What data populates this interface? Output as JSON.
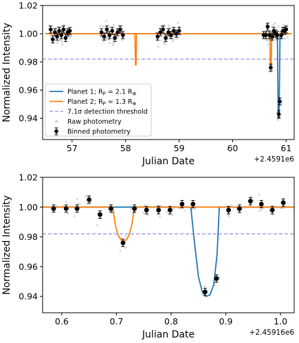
{
  "chart_data": [
    {
      "type": "scatter",
      "xlabel": "Julian Date",
      "ylabel": "Normalized Intensity",
      "x_offset_label": "+2.4591e6",
      "xlim": [
        56.45,
        61.15
      ],
      "ylim": [
        0.925,
        1.02
      ],
      "xticks": [
        57,
        58,
        59,
        60,
        61
      ],
      "xtick_labels": [
        "57",
        "58",
        "59",
        "60",
        "61"
      ],
      "yticks": [
        0.94,
        0.96,
        0.98,
        1.0,
        1.02
      ],
      "ytick_labels": [
        "0.94",
        "0.96",
        "0.98",
        "1.00",
        "1.02"
      ],
      "legend_position": "lower-left",
      "legend": [
        {
          "key": "planet1",
          "label": "Planet 1; R",
          "sub": "P",
          "suffix": " = 2.1 R",
          "end_sub": "⊕",
          "style": "line",
          "color": "#1f77b4"
        },
        {
          "key": "planet2",
          "label": "Planet 2; R",
          "sub": "P",
          "suffix": " = 1.3 R",
          "end_sub": "⊕",
          "style": "line",
          "color": "#ff7f0e"
        },
        {
          "key": "threshold",
          "label": "7.1σ detection threshold",
          "style": "dashed",
          "color": "#8c8cf0"
        },
        {
          "key": "raw",
          "label": "Raw photometry",
          "style": "dot",
          "color": "#cccccc"
        },
        {
          "key": "binned",
          "label": "Binned photometry",
          "style": "errorbar",
          "color": "#000000"
        }
      ],
      "threshold": 0.982,
      "series": [
        {
          "name": "Planet 1; RP = 2.1 R⊕",
          "type": "line",
          "color": "#1f77b4",
          "x": [
            56.5,
            60.835,
            60.852,
            60.868,
            60.886,
            61.1
          ],
          "y": [
            1.0,
            1.0,
            0.94,
            0.94,
            1.0,
            1.0
          ]
        },
        {
          "name": "Planet 2; RP = 1.3 R⊕",
          "type": "line",
          "color": "#ff7f0e",
          "x": [
            56.5,
            58.175,
            58.185,
            58.195,
            58.205,
            60.695,
            60.705,
            60.72,
            60.73,
            61.1
          ],
          "y": [
            1.0,
            1.0,
            0.978,
            0.978,
            1.0,
            1.0,
            0.977,
            0.977,
            1.0,
            1.0
          ]
        },
        {
          "name": "Binned photometry",
          "type": "errorbar",
          "color": "#000000",
          "yerr": 0.0025,
          "x": [
            56.6,
            56.64,
            56.68,
            56.72,
            56.76,
            56.8,
            56.84,
            56.88,
            56.92,
            56.96,
            57.55,
            57.6,
            57.65,
            57.7,
            57.75,
            57.8,
            57.85,
            57.9,
            57.95,
            58.6,
            58.65,
            58.7,
            58.75,
            58.8,
            58.85,
            58.9,
            58.95,
            59.0,
            60.58,
            60.62,
            60.655,
            60.69,
            60.712,
            60.74,
            60.77,
            60.8,
            60.835,
            60.862,
            60.88,
            60.91,
            60.94,
            60.97,
            61.0
          ],
          "y": [
            1.003,
            0.996,
            1.001,
            0.998,
            1.002,
            0.999,
            1.003,
            0.997,
            1.001,
            1.002,
            1.001,
            0.998,
            1.003,
            0.999,
            1.002,
            0.997,
            1.001,
            1.003,
            0.999,
            0.998,
            1.001,
            1.003,
            0.997,
            1.001,
            0.999,
            1.002,
            1.0,
            1.002,
            0.999,
            0.999,
            1.005,
            0.999,
            0.976,
            0.998,
            1.002,
            1.0,
            0.999,
            0.943,
            0.952,
            0.999,
            1.002,
            1.002,
            1.003
          ]
        }
      ]
    },
    {
      "type": "scatter",
      "xlabel": "Julian Date",
      "ylabel": "Normalized Intensity",
      "x_offset_label": "+2.45916e6",
      "xlim": [
        0.565,
        1.025
      ],
      "ylim": [
        0.929,
        1.02
      ],
      "xticks": [
        0.6,
        0.7,
        0.8,
        0.9,
        1.0
      ],
      "xtick_labels": [
        "0.6",
        "0.7",
        "0.8",
        "0.9",
        "1.0"
      ],
      "yticks": [
        0.94,
        0.96,
        0.98,
        1.0,
        1.02
      ],
      "ytick_labels": [
        "0.94",
        "0.96",
        "0.98",
        "1.00",
        "1.02"
      ],
      "threshold": 0.982,
      "series": [
        {
          "name": "Planet 1; RP = 2.1 R⊕",
          "type": "line",
          "color": "#1f77b4",
          "x": [
            0.565,
            0.836,
            0.843,
            0.85,
            0.857,
            0.864,
            0.871,
            0.878,
            0.884,
            0.888,
            1.025
          ],
          "y": [
            1.0,
            1.0,
            0.975,
            0.953,
            0.943,
            0.94,
            0.941,
            0.948,
            0.968,
            1.0,
            1.0
          ]
        },
        {
          "name": "Planet 2; RP = 1.3 R⊕",
          "type": "line",
          "color": "#ff7f0e",
          "x": [
            0.565,
            0.693,
            0.698,
            0.703,
            0.708,
            0.713,
            0.718,
            0.723,
            0.728,
            0.733,
            1.025
          ],
          "y": [
            1.0,
            1.0,
            0.988,
            0.981,
            0.978,
            0.977,
            0.978,
            0.981,
            0.988,
            1.0,
            1.0
          ]
        },
        {
          "name": "Binned photometry",
          "type": "errorbar",
          "color": "#000000",
          "yerr": 0.0025,
          "x": [
            0.585,
            0.608,
            0.628,
            0.65,
            0.67,
            0.69,
            0.712,
            0.733,
            0.755,
            0.777,
            0.798,
            0.82,
            0.84,
            0.862,
            0.883,
            0.905,
            0.925,
            0.945,
            0.965,
            0.985,
            1.005
          ],
          "y": [
            0.999,
            0.999,
            0.999,
            1.005,
            0.995,
            0.999,
            0.976,
            0.999,
            0.998,
            0.998,
            0.998,
            1.002,
            1.002,
            0.943,
            0.952,
            0.998,
            0.999,
            1.004,
            1.002,
            0.998,
            1.003
          ]
        }
      ]
    }
  ]
}
